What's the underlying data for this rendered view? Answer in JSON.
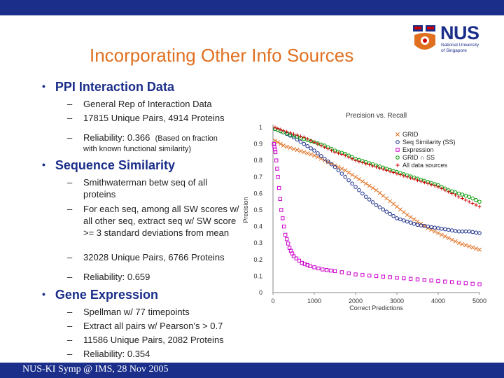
{
  "slide": {
    "title": "Incorporating Other Info Sources",
    "footer": "NUS-KI Symp @ IMS, 28 Nov 2005",
    "logo": {
      "name": "NUS",
      "sub1": "National University",
      "sub2": "of Singapore"
    }
  },
  "sections": [
    {
      "heading": "PPI Interaction Data",
      "items": [
        "General Rep of Interaction Data",
        "17815 Unique Pairs, 4914 Proteins",
        "Reliability: 0.366"
      ],
      "note": "(Based on fraction",
      "note2": "with known functional similarity)"
    },
    {
      "heading": "Sequence Similarity",
      "items": [
        "Smithwaterman betw seq of all proteins",
        "For each seq, among all SW scores w/ all other seq, extract seq w/ SW score >= 3 standard deviations from mean",
        "32028 Unique Pairs, 6766 Proteins",
        "Reliability: 0.659"
      ]
    },
    {
      "heading": "Gene Expression",
      "items": [
        "Spellman w/ 77 timepoints",
        "Extract all pairs w/ Pearson's > 0.7",
        "11586 Unique Pairs, 2082 Proteins",
        "Reliability: 0.354"
      ]
    }
  ],
  "chart_data": {
    "type": "scatter",
    "title": "Precision vs. Recall",
    "xlabel": "Correct Predictions",
    "ylabel": "Precision",
    "xlim": [
      0,
      5000
    ],
    "ylim": [
      0,
      1
    ],
    "xticks": [
      "0",
      "1000",
      "2000",
      "3000",
      "4000",
      "5000"
    ],
    "yticks": [
      "0",
      "0.1",
      "0.2",
      "0.3",
      "0.4",
      "0.5",
      "0.6",
      "0.7",
      "0.8",
      "0.9",
      "1"
    ],
    "legend_position": "top-right",
    "series": [
      {
        "name": "GRID",
        "marker": "x",
        "color": "#e07020",
        "x": [
          50,
          250,
          500,
          750,
          1000,
          1250,
          1500,
          1750,
          2000,
          2250,
          2500,
          2750,
          3000,
          3250,
          3500,
          3750,
          4000,
          4250,
          4500,
          4750,
          5000
        ],
        "y": [
          0.92,
          0.89,
          0.87,
          0.85,
          0.83,
          0.8,
          0.77,
          0.74,
          0.7,
          0.66,
          0.62,
          0.57,
          0.52,
          0.47,
          0.43,
          0.39,
          0.36,
          0.33,
          0.3,
          0.28,
          0.26
        ]
      },
      {
        "name": "Seq Similarity (SS)",
        "marker": "o",
        "color": "#1a2e8a",
        "x": [
          50,
          250,
          500,
          750,
          1000,
          1250,
          1500,
          1750,
          2000,
          2250,
          2500,
          2750,
          3000,
          3250,
          3500,
          3750,
          4000,
          4250,
          4500,
          4750,
          5000
        ],
        "y": [
          0.99,
          0.97,
          0.94,
          0.9,
          0.86,
          0.81,
          0.76,
          0.7,
          0.64,
          0.58,
          0.53,
          0.49,
          0.45,
          0.43,
          0.41,
          0.4,
          0.39,
          0.38,
          0.37,
          0.37,
          0.36
        ]
      },
      {
        "name": "Expression",
        "marker": "s",
        "color": "#cc00cc",
        "x": [
          20,
          60,
          120,
          200,
          300,
          400,
          500,
          700,
          900,
          1200,
          1500,
          2000,
          2500,
          3000,
          3500,
          4000,
          4500,
          5000
        ],
        "y": [
          0.9,
          0.85,
          0.7,
          0.5,
          0.35,
          0.27,
          0.22,
          0.18,
          0.16,
          0.14,
          0.13,
          0.11,
          0.1,
          0.09,
          0.08,
          0.07,
          0.06,
          0.05
        ]
      },
      {
        "name": "GRID ∩ SS",
        "marker": "o",
        "color": "#009900",
        "x": [
          50,
          250,
          500,
          750,
          1000,
          1250,
          1500,
          1750,
          2000,
          2250,
          2500,
          2750,
          3000,
          3250,
          3500,
          3750,
          4000,
          4250,
          4500,
          4750,
          5000
        ],
        "y": [
          0.99,
          0.97,
          0.95,
          0.93,
          0.91,
          0.89,
          0.86,
          0.84,
          0.81,
          0.79,
          0.77,
          0.75,
          0.73,
          0.71,
          0.69,
          0.67,
          0.65,
          0.62,
          0.6,
          0.58,
          0.55
        ]
      },
      {
        "name": "All data sources",
        "marker": "+",
        "color": "#cc0000",
        "x": [
          50,
          250,
          500,
          750,
          1000,
          1250,
          1500,
          1750,
          2000,
          2250,
          2500,
          2750,
          3000,
          3250,
          3500,
          3750,
          4000,
          4250,
          4500,
          4750,
          5000
        ],
        "y": [
          1.0,
          0.98,
          0.96,
          0.94,
          0.91,
          0.88,
          0.85,
          0.83,
          0.8,
          0.78,
          0.76,
          0.74,
          0.72,
          0.7,
          0.68,
          0.66,
          0.64,
          0.61,
          0.58,
          0.55,
          0.52
        ]
      }
    ]
  }
}
